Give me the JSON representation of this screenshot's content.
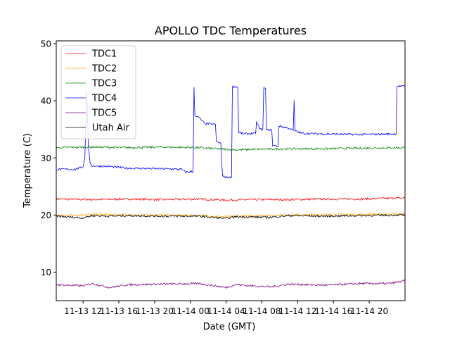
{
  "chart_data": {
    "type": "line",
    "title": "APOLLO TDC Temperatures",
    "xlabel": "Date (GMT)",
    "ylabel": "Temperature (C)",
    "xlim": [
      0,
      39
    ],
    "ylim": [
      5,
      50.5
    ],
    "yticks": [
      10,
      20,
      30,
      40,
      50
    ],
    "xticks": [
      {
        "label": "11-13 12",
        "x": 3
      },
      {
        "label": "11-13 16",
        "x": 7
      },
      {
        "label": "11-13 20",
        "x": 11
      },
      {
        "label": "11-14 00",
        "x": 15
      },
      {
        "label": "11-14 04",
        "x": 19
      },
      {
        "label": "11-14 08",
        "x": 23
      },
      {
        "label": "11-14 12",
        "x": 27
      },
      {
        "label": "11-14 16",
        "x": 31
      },
      {
        "label": "11-14 20",
        "x": 35
      }
    ],
    "legend_position": "top-left",
    "series": [
      {
        "name": "TDC1",
        "color": "#ff0000",
        "points": [
          [
            0,
            22.8
          ],
          [
            4,
            22.7
          ],
          [
            8,
            22.8
          ],
          [
            12,
            22.7
          ],
          [
            16,
            22.8
          ],
          [
            19,
            22.6
          ],
          [
            22,
            22.7
          ],
          [
            26,
            22.7
          ],
          [
            30,
            22.8
          ],
          [
            34,
            22.8
          ],
          [
            39,
            23.0
          ]
        ]
      },
      {
        "name": "TDC2",
        "color": "#ffa500",
        "points": [
          [
            0,
            19.9
          ],
          [
            4,
            20.1
          ],
          [
            8,
            20.0
          ],
          [
            12,
            20.0
          ],
          [
            16,
            19.9
          ],
          [
            19,
            19.7
          ],
          [
            22,
            19.9
          ],
          [
            26,
            20.0
          ],
          [
            30,
            20.1
          ],
          [
            34,
            20.1
          ],
          [
            39,
            20.2
          ]
        ]
      },
      {
        "name": "TDC3",
        "color": "#008000",
        "points": [
          [
            0,
            31.8
          ],
          [
            4,
            31.9
          ],
          [
            8,
            31.8
          ],
          [
            12,
            31.9
          ],
          [
            16,
            31.8
          ],
          [
            18,
            31.6
          ],
          [
            20,
            31.4
          ],
          [
            22,
            31.5
          ],
          [
            26,
            31.6
          ],
          [
            30,
            31.6
          ],
          [
            34,
            31.7
          ],
          [
            39,
            31.8
          ]
        ]
      },
      {
        "name": "TDC4",
        "color": "#0000ff",
        "points": [
          [
            0,
            28.0
          ],
          [
            2,
            28.0
          ],
          [
            3.0,
            28.4
          ],
          [
            3.2,
            30.0
          ],
          [
            3.4,
            41.9
          ],
          [
            3.6,
            32.0
          ],
          [
            3.8,
            29.0
          ],
          [
            4,
            28.6
          ],
          [
            6,
            28.5
          ],
          [
            8,
            28.2
          ],
          [
            12,
            28.1
          ],
          [
            14,
            28.0
          ],
          [
            14.5,
            27.5
          ],
          [
            15.3,
            27.6
          ],
          [
            15.4,
            42.4
          ],
          [
            15.5,
            37.5
          ],
          [
            16,
            37.0
          ],
          [
            16.6,
            36.0
          ],
          [
            17.8,
            35.9
          ],
          [
            17.9,
            32.8
          ],
          [
            18.4,
            32.6
          ],
          [
            18.5,
            29.2
          ],
          [
            18.6,
            26.8
          ],
          [
            19.0,
            26.6
          ],
          [
            19.6,
            26.6
          ],
          [
            19.7,
            42.5
          ],
          [
            20.3,
            42.4
          ],
          [
            20.4,
            34.5
          ],
          [
            21.0,
            34.2
          ],
          [
            22.3,
            34.3
          ],
          [
            22.4,
            36.3
          ],
          [
            22.8,
            35.0
          ],
          [
            23.1,
            35.0
          ],
          [
            23.2,
            42.3
          ],
          [
            23.4,
            42.2
          ],
          [
            23.5,
            34.9
          ],
          [
            24.1,
            34.9
          ],
          [
            24.2,
            32.2
          ],
          [
            24.8,
            32.0
          ],
          [
            24.9,
            35.6
          ],
          [
            26.0,
            35.2
          ],
          [
            26.5,
            34.8
          ],
          [
            26.6,
            40.1
          ],
          [
            26.7,
            34.7
          ],
          [
            27.5,
            34.3
          ],
          [
            30,
            34.2
          ],
          [
            34,
            34.1
          ],
          [
            38,
            34.2
          ],
          [
            38.1,
            42.6
          ],
          [
            39,
            42.5
          ]
        ]
      },
      {
        "name": "TDC5",
        "color": "#800080",
        "points": [
          [
            0,
            7.8
          ],
          [
            3,
            7.6
          ],
          [
            4,
            8.0
          ],
          [
            6,
            7.3
          ],
          [
            8,
            7.8
          ],
          [
            12,
            7.9
          ],
          [
            16,
            8.0
          ],
          [
            19,
            7.3
          ],
          [
            20,
            7.8
          ],
          [
            22,
            7.6
          ],
          [
            24,
            7.4
          ],
          [
            26,
            7.9
          ],
          [
            30,
            7.7
          ],
          [
            34,
            8.0
          ],
          [
            37,
            8.0
          ],
          [
            38,
            8.2
          ],
          [
            39,
            8.5
          ]
        ]
      },
      {
        "name": "Utah Air",
        "color": "#000000",
        "points": [
          [
            0,
            19.8
          ],
          [
            3,
            19.5
          ],
          [
            4,
            19.9
          ],
          [
            6,
            19.8
          ],
          [
            8,
            19.9
          ],
          [
            12,
            19.8
          ],
          [
            16,
            19.8
          ],
          [
            19,
            19.4
          ],
          [
            20,
            19.7
          ],
          [
            24,
            19.6
          ],
          [
            26,
            19.9
          ],
          [
            30,
            19.8
          ],
          [
            34,
            19.9
          ],
          [
            39,
            20.0
          ]
        ]
      }
    ]
  }
}
